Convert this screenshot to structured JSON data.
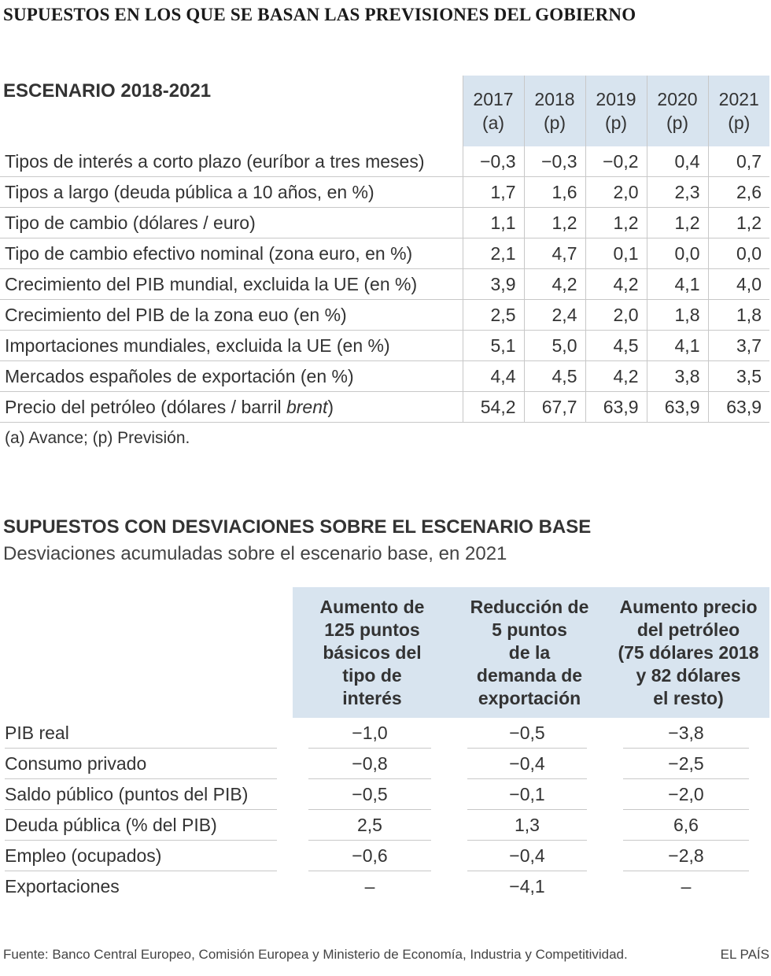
{
  "title": "SUPUESTOS EN LOS QUE SE BASAN LAS PREVISIONES DEL GOBIERNO",
  "scenario": {
    "title": "ESCENARIO 2018-2021",
    "years": [
      {
        "year": "2017",
        "note": "(a)"
      },
      {
        "year": "2018",
        "note": "(p)"
      },
      {
        "year": "2019",
        "note": "(p)"
      },
      {
        "year": "2020",
        "note": "(p)"
      },
      {
        "year": "2021",
        "note": "(p)"
      }
    ],
    "rows": [
      {
        "label": "Tipos de interés a corto plazo (euríbor a tres meses)",
        "values": [
          "−0,3",
          "−0,3",
          "−0,2",
          "0,4",
          "0,7"
        ]
      },
      {
        "label": "Tipos a largo (deuda pública a 10 años, en %)",
        "values": [
          "1,7",
          "1,6",
          "2,0",
          "2,3",
          "2,6"
        ]
      },
      {
        "label": "Tipo de cambio (dólares / euro)",
        "values": [
          "1,1",
          "1,2",
          "1,2",
          "1,2",
          "1,2"
        ]
      },
      {
        "label": "Tipo de cambio efectivo nominal (zona euro, en %)",
        "values": [
          "2,1",
          "4,7",
          "0,1",
          "0,0",
          "0,0"
        ]
      },
      {
        "label": "Crecimiento del PIB mundial, excluida la UE (en %)",
        "values": [
          "3,9",
          "4,2",
          "4,2",
          "4,1",
          "4,0"
        ]
      },
      {
        "label": "Crecimiento del PIB de la zona euo (en %)",
        "values": [
          "2,5",
          "2,4",
          "2,0",
          "1,8",
          "1,8"
        ]
      },
      {
        "label": "Importaciones mundiales, excluida la UE (en %)",
        "values": [
          "5,1",
          "5,0",
          "4,5",
          "4,1",
          "3,7"
        ]
      },
      {
        "label": "Mercados españoles de exportación (en %)",
        "values": [
          "4,4",
          "4,5",
          "4,2",
          "3,8",
          "3,5"
        ]
      },
      {
        "label": "Precio del petróleo (dólares / barril ",
        "label_italic": "brent",
        "label_end": ")",
        "values": [
          "54,2",
          "67,7",
          "63,9",
          "63,9",
          "63,9"
        ]
      }
    ],
    "footnote": "(a) Avance; (p) Previsión."
  },
  "deviations": {
    "title": "SUPUESTOS CON DESVIACIONES SOBRE EL ESCENARIO BASE",
    "subtitle": "Desviaciones acumuladas sobre el escenario base, en 2021",
    "columns": [
      [
        "Aumento de",
        "125 puntos",
        "básicos del",
        "tipo de",
        "interés"
      ],
      [
        "Reducción de",
        "5 puntos",
        "de la",
        "demanda de",
        "exportación"
      ],
      [
        "Aumento precio",
        "del petróleo",
        "(75 dólares 2018",
        "y 82 dólares",
        "el resto)"
      ]
    ],
    "rows": [
      {
        "label": "PIB real",
        "values": [
          "−1,0",
          "−0,5",
          "−3,8"
        ]
      },
      {
        "label": "Consumo privado",
        "values": [
          "−0,8",
          "−0,4",
          "−2,5"
        ]
      },
      {
        "label": "Saldo público (puntos del PIB)",
        "values": [
          "−0,5",
          "−0,1",
          "−2,0"
        ]
      },
      {
        "label": "Deuda pública (% del PIB)",
        "values": [
          "2,5",
          "1,3",
          "6,6"
        ]
      },
      {
        "label": "Empleo (ocupados)",
        "values": [
          "−0,6",
          "−0,4",
          "−2,8"
        ]
      },
      {
        "label": "Exportaciones",
        "values": [
          "–",
          "−4,1",
          "–"
        ]
      }
    ]
  },
  "source": "Fuente: Banco Central Europeo, Comisión Europea y Ministerio de Economía, Industria y Competitividad.",
  "brand": "EL PAÍS"
}
